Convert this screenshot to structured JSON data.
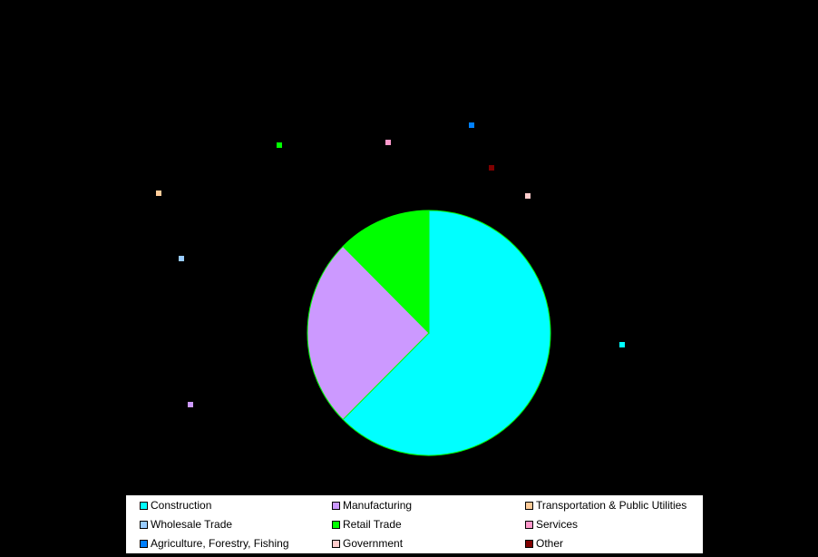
{
  "chart_data": {
    "type": "pie",
    "title": "",
    "start_angle_deg": 0,
    "direction": "clockwise",
    "slices": [
      {
        "label": "Construction",
        "value": 62.5,
        "color": "#00ffff"
      },
      {
        "label": "Manufacturing",
        "value": 25.0,
        "color": "#cc99ff"
      },
      {
        "label": "Transportation & Public Utilities",
        "value": 0,
        "color": "#ffcc99"
      },
      {
        "label": "Wholesale Trade",
        "value": 0,
        "color": "#99ccff"
      },
      {
        "label": "Retail Trade",
        "value": 12.5,
        "color": "#00ff00"
      },
      {
        "label": "Services",
        "value": 0,
        "color": "#ff99cc"
      },
      {
        "label": "Agriculture, Forestry, Fishing",
        "value": 0,
        "color": "#0080ff"
      },
      {
        "label": "Government",
        "value": 0,
        "color": "#ffcccc"
      },
      {
        "label": "Other",
        "value": 0,
        "color": "#800000"
      }
    ],
    "pie_border_color": "#00ff00",
    "legend": {
      "position": "bottom",
      "columns": 3,
      "background": "#ffffff"
    }
  }
}
